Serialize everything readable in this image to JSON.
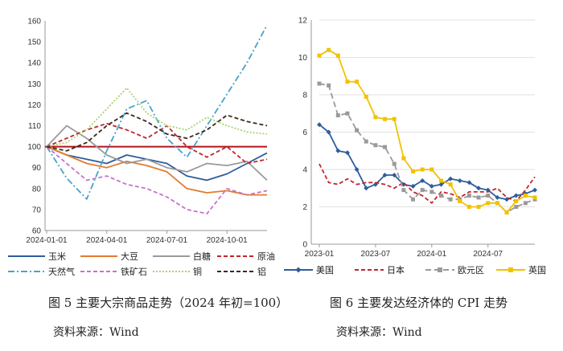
{
  "figures": {
    "left": {
      "caption": "图 5 主要大宗商品走势（2024 年初=100）",
      "source": "资料来源：Wind"
    },
    "right": {
      "caption": "图 6 主要发达经济体的 CPI 走势",
      "source": "资料来源：Wind"
    }
  },
  "chart_data": [
    {
      "type": "line",
      "title": "主要大宗商品走势（2024 年初=100）",
      "ylim": [
        60,
        160
      ],
      "yticks": [
        60,
        70,
        80,
        90,
        100,
        110,
        120,
        130,
        140,
        150,
        160
      ],
      "x_tick_labels": [
        "2024-01-01",
        "2024-04-01",
        "2024-07-01",
        "2024-10-01"
      ],
      "x_tick_index": [
        0,
        3,
        6,
        9
      ],
      "baseline": 100,
      "x": [
        "2024-01",
        "2024-02",
        "2024-03",
        "2024-04",
        "2024-05",
        "2024-06",
        "2024-07",
        "2024-08",
        "2024-09",
        "2024-10",
        "2024-11",
        "2024-12"
      ],
      "series": [
        {
          "name": "玉米",
          "color": "#2e5d9b",
          "dash": "",
          "values": [
            100,
            96,
            94,
            92,
            96,
            94,
            92,
            86,
            84,
            87,
            92,
            97
          ]
        },
        {
          "name": "大豆",
          "color": "#e37b2e",
          "dash": "",
          "values": [
            100,
            96,
            92,
            90,
            93,
            91,
            88,
            80,
            78,
            79,
            77,
            77
          ]
        },
        {
          "name": "白糖",
          "color": "#9a9a9a",
          "dash": "",
          "values": [
            100,
            110,
            104,
            96,
            92,
            94,
            90,
            88,
            92,
            91,
            93,
            84
          ]
        },
        {
          "name": "原油",
          "color": "#c0262d",
          "dash": "5,3",
          "values": [
            100,
            104,
            108,
            111,
            108,
            104,
            110,
            100,
            95,
            100,
            92,
            94
          ]
        },
        {
          "name": "天然气",
          "color": "#4aa3c8",
          "dash": "8,3,2,3",
          "values": [
            100,
            85,
            75,
            98,
            118,
            122,
            104,
            95,
            110,
            125,
            140,
            158
          ]
        },
        {
          "name": "铁矿石",
          "color": "#c772c7",
          "dash": "5,3",
          "values": [
            100,
            92,
            84,
            86,
            82,
            80,
            76,
            70,
            68,
            80,
            77,
            79
          ]
        },
        {
          "name": "铜",
          "color": "#a9d46b",
          "dash": "2,2",
          "values": [
            100,
            102,
            108,
            118,
            128,
            116,
            110,
            108,
            114,
            110,
            107,
            106
          ]
        },
        {
          "name": "铝",
          "color": "#3b2a1a",
          "dash": "5,3",
          "values": [
            100,
            98,
            102,
            110,
            116,
            112,
            106,
            104,
            108,
            115,
            112,
            110
          ]
        }
      ]
    },
    {
      "type": "line",
      "title": "主要发达经济体的 CPI 走势",
      "ylim": [
        0,
        12
      ],
      "yticks": [
        0,
        2,
        4,
        6,
        8,
        10,
        12
      ],
      "x_tick_labels": [
        "2023-01",
        "2023-07",
        "2024-01",
        "2024-07"
      ],
      "x_tick_index": [
        0,
        6,
        12,
        18
      ],
      "x": [
        "2023-01",
        "2023-02",
        "2023-03",
        "2023-04",
        "2023-05",
        "2023-06",
        "2023-07",
        "2023-08",
        "2023-09",
        "2023-10",
        "2023-11",
        "2023-12",
        "2024-01",
        "2024-02",
        "2024-03",
        "2024-04",
        "2024-05",
        "2024-06",
        "2024-07",
        "2024-08",
        "2024-09",
        "2024-10",
        "2024-11",
        "2024-12"
      ],
      "series": [
        {
          "name": "美国",
          "color": "#2e5d9b",
          "dash": "",
          "marker": "diamond",
          "values": [
            6.4,
            6.0,
            5.0,
            4.9,
            4.0,
            3.0,
            3.2,
            3.7,
            3.7,
            3.2,
            3.1,
            3.4,
            3.1,
            3.2,
            3.5,
            3.4,
            3.3,
            3.0,
            2.9,
            2.5,
            2.4,
            2.6,
            2.7,
            2.9
          ]
        },
        {
          "name": "日本",
          "color": "#c0262d",
          "dash": "5,3",
          "marker": "",
          "values": [
            4.3,
            3.3,
            3.2,
            3.5,
            3.2,
            3.3,
            3.3,
            3.2,
            3.0,
            3.3,
            2.8,
            2.6,
            2.2,
            2.8,
            2.7,
            2.5,
            2.8,
            2.8,
            2.8,
            3.0,
            2.5,
            2.3,
            2.9,
            3.6
          ]
        },
        {
          "name": "欧元区",
          "color": "#9a9a9a",
          "dash": "7,4",
          "marker": "square",
          "values": [
            8.6,
            8.5,
            6.9,
            7.0,
            6.1,
            5.5,
            5.3,
            5.2,
            4.3,
            2.9,
            2.4,
            2.9,
            2.8,
            2.6,
            2.4,
            2.4,
            2.6,
            2.5,
            2.6,
            2.2,
            1.7,
            2.0,
            2.2,
            2.4
          ]
        },
        {
          "name": "英国",
          "color": "#f2c200",
          "dash": "",
          "marker": "square",
          "values": [
            10.1,
            10.4,
            10.1,
            8.7,
            8.7,
            7.9,
            6.8,
            6.7,
            6.7,
            4.6,
            3.9,
            4.0,
            4.0,
            3.4,
            3.2,
            2.3,
            2.0,
            2.0,
            2.2,
            2.2,
            1.7,
            2.3,
            2.6,
            2.5
          ]
        }
      ]
    }
  ]
}
